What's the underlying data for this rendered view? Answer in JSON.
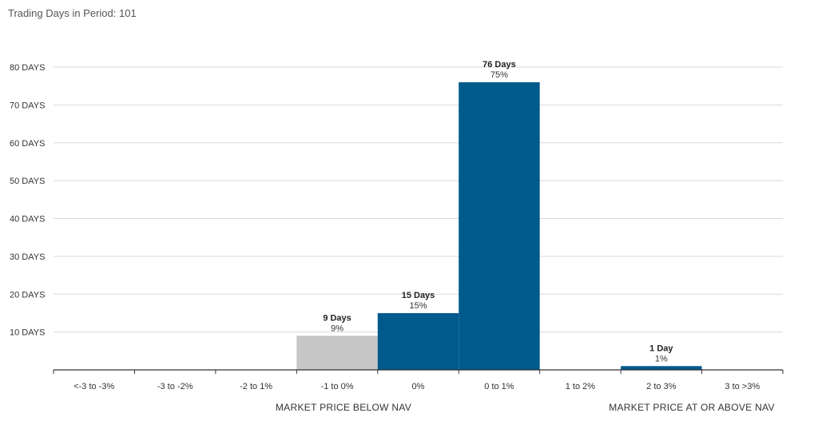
{
  "header": {
    "label": "Trading Days in Period:",
    "value": "101"
  },
  "chart_data": {
    "type": "bar",
    "categories": [
      "<-3 to -3%",
      "-3 to -2%",
      "-2 to 1%",
      "-1 to 0%",
      "0%",
      "0 to 1%",
      "1 to 2%",
      "2 to 3%",
      "3 to >3%"
    ],
    "values": [
      0,
      0,
      0,
      9,
      15,
      76,
      0,
      1,
      0
    ],
    "days_labels": [
      "",
      "",
      "",
      "9 Days",
      "15 Days",
      "76 Days",
      "",
      "1 Day",
      ""
    ],
    "percent_labels": [
      "",
      "",
      "",
      "9%",
      "15%",
      "75%",
      "",
      "1%",
      ""
    ],
    "bar_colors": [
      "#c6c6c6",
      "#c6c6c6",
      "#c6c6c6",
      "#c6c6c6",
      "#005a8c",
      "#005a8c",
      "#005a8c",
      "#005a8c",
      "#005a8c"
    ],
    "ylim": [
      0,
      80
    ],
    "yticks": [
      10,
      20,
      30,
      40,
      50,
      60,
      70,
      80
    ],
    "ytick_labels": [
      "10 DAYS",
      "20 DAYS",
      "30 DAYS",
      "40 DAYS",
      "50 DAYS",
      "60 DAYS",
      "70 DAYS",
      "80 DAYS"
    ],
    "group_labels": {
      "below": "MARKET PRICE BELOW NAV",
      "above": "MARKET PRICE AT OR ABOVE NAV"
    },
    "grid": true,
    "legend": "none",
    "colors": {
      "below_nav": "#c6c6c6",
      "above_nav": "#005a8c",
      "grid": "#d9d9d9",
      "axis": "#333333"
    }
  }
}
